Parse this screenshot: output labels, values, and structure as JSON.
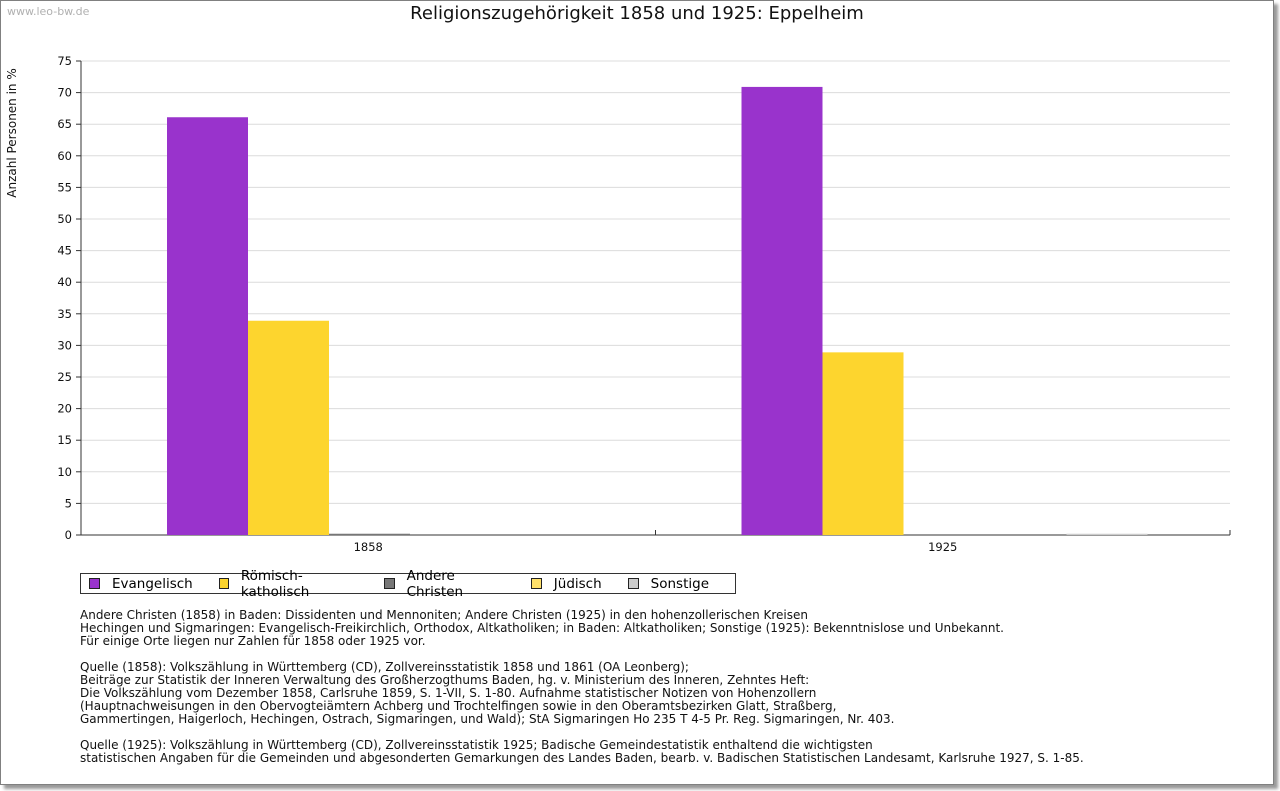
{
  "watermark": "www.leo-bw.de",
  "chart_data": {
    "type": "bar",
    "title": "Religionszugehörigkeit 1858 und 1925: Eppelheim",
    "ylabel": "Anzahl Personen in %",
    "xlabel": "",
    "ylim": [
      0,
      75
    ],
    "yticks": [
      0,
      5,
      10,
      15,
      20,
      25,
      30,
      35,
      40,
      45,
      50,
      55,
      60,
      65,
      70,
      75
    ],
    "ytick_labels": [
      "0",
      "5",
      "10",
      "15",
      "20",
      "25",
      "30",
      "35",
      "40",
      "45",
      "50",
      "55",
      "60",
      "65",
      "70",
      "75"
    ],
    "grid": true,
    "legend_position": "bottom-left",
    "categories": [
      "1858",
      "1925"
    ],
    "series": [
      {
        "name": "Evangelisch",
        "color": "#9933cc",
        "values": [
          66.1,
          70.9
        ]
      },
      {
        "name": "Römisch-katholisch",
        "color": "#fdd52e",
        "values": [
          33.9,
          28.9
        ]
      },
      {
        "name": "Andere Christen",
        "color": "#777777",
        "values": [
          0.2,
          0.0
        ]
      },
      {
        "name": "Jüdisch",
        "color": "#ffe16b",
        "values": [
          0.0,
          0.0
        ]
      },
      {
        "name": "Sonstige",
        "color": "#cccccc",
        "values": [
          0.0,
          0.2
        ]
      }
    ]
  },
  "notes": {
    "p1": "Andere Christen (1858) in Baden: Dissidenten und Mennoniten; Andere Christen (1925) in den hohenzollerischen Kreisen\nHechingen und Sigmaringen: Evangelisch-Freikirchlich, Orthodox, Altkatholiken; in Baden: Altkatholiken; Sonstige (1925): Bekenntnislose und Unbekannt.\nFür einige Orte liegen nur Zahlen für 1858 oder 1925 vor.",
    "p2": "Quelle (1858): Volkszählung in Württemberg (CD), Zollvereinsstatistik 1858 und 1861 (OA Leonberg);\nBeiträge zur Statistik der Inneren Verwaltung des Großherzogthums Baden, hg. v. Ministerium des Inneren, Zehntes Heft:\nDie Volkszählung vom Dezember 1858, Carlsruhe 1859, S. 1-VII, S. 1-80. Aufnahme statistischer Notizen von Hohenzollern\n(Hauptnachweisungen in den Obervogteiämtern Achberg und Trochtelfingen sowie in den Oberamtsbezirken Glatt, Straßberg,\nGammertingen, Haigerloch, Hechingen, Ostrach, Sigmaringen, und Wald); StA Sigmaringen Ho 235 T 4-5 Pr. Reg. Sigmaringen, Nr. 403.",
    "p3": "Quelle (1925): Volkszählung in Württemberg (CD), Zollvereinsstatistik 1925; Badische Gemeindestatistik enthaltend die wichtigsten\nstatistischen Angaben für die Gemeinden und abgesonderten Gemarkungen des Landes Baden, bearb. v. Badischen Statistischen Landesamt, Karlsruhe 1927, S. 1-85."
  }
}
